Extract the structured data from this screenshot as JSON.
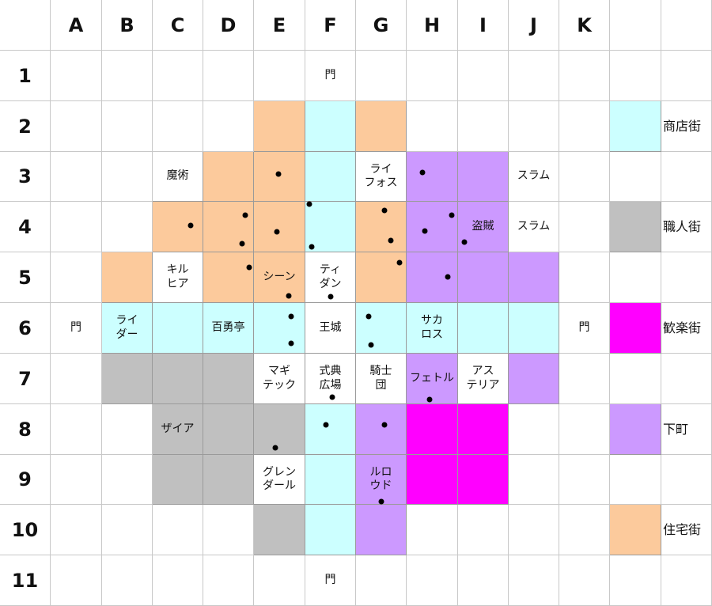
{
  "columns": [
    "A",
    "B",
    "C",
    "D",
    "E",
    "F",
    "G",
    "H",
    "I",
    "J",
    "K"
  ],
  "rows": [
    "1",
    "2",
    "3",
    "4",
    "5",
    "6",
    "7",
    "8",
    "9",
    "10",
    "11"
  ],
  "colors": {
    "shop": "#ccffff",
    "residential": "#fcca9c",
    "craft": "#c0c0c0",
    "entertainment": "#ff00ff",
    "downtown": "#cc99ff",
    "label": "#ffffff",
    "grid": "#c8c8c8"
  },
  "zones": {
    "1": {},
    "2": {
      "E": "residential",
      "F": "shop",
      "G": "residential"
    },
    "3": {
      "C": "label",
      "D": "residential",
      "E": "residential",
      "F": "shop",
      "G": "label",
      "H": "downtown",
      "I": "downtown"
    },
    "4": {
      "C": "residential",
      "D": "residential",
      "E": "residential",
      "F": "shop",
      "G": "residential",
      "H": "downtown",
      "I": "downtown"
    },
    "5": {
      "B": "residential",
      "C": "label",
      "D": "residential",
      "E": "residential",
      "F": "label",
      "G": "residential",
      "H": "downtown",
      "I": "downtown",
      "J": "downtown"
    },
    "6": {
      "B": "shop",
      "C": "shop",
      "D": "shop",
      "E": "shop",
      "F": "label",
      "G": "shop",
      "H": "shop",
      "I": "shop",
      "J": "shop"
    },
    "7": {
      "B": "craft",
      "C": "craft",
      "D": "craft",
      "E": "label",
      "F": "label",
      "G": "label",
      "H": "downtown",
      "I": "label",
      "J": "downtown"
    },
    "8": {
      "C": "craft",
      "D": "craft",
      "E": "craft",
      "F": "shop",
      "G": "downtown",
      "H": "entertainment",
      "I": "entertainment"
    },
    "9": {
      "C": "craft",
      "D": "craft",
      "E": "label",
      "F": "shop",
      "G": "downtown",
      "H": "entertainment",
      "I": "entertainment"
    },
    "10": {
      "E": "craft",
      "F": "shop",
      "G": "downtown"
    },
    "11": {}
  },
  "labels": {
    "1": {
      "F": "門"
    },
    "3": {
      "C": "魔術",
      "G": "ライ\nフォス",
      "J": "スラム"
    },
    "4": {
      "I": "盗賊",
      "J": "スラム"
    },
    "5": {
      "C": "キル\nヒア",
      "E": "シーン",
      "F": "ティ\nダン"
    },
    "6": {
      "A": "門",
      "B": "ライ\nダー",
      "D": "百勇亭",
      "F": "王城",
      "H": "サカ\nロス",
      "K": "門"
    },
    "7": {
      "E": "マギ\nテック",
      "F": "式典\n広場",
      "G": "騎士\n団",
      "H": "フェトル",
      "I": "アス\nテリア"
    },
    "8": {
      "C": "ザイア"
    },
    "9": {
      "E": "グレン\nダール",
      "G": "ルロ\nウド"
    },
    "11": {
      "F": "門"
    }
  },
  "legend": [
    {
      "row": "2",
      "zone": "shop",
      "label": "商店街"
    },
    {
      "row": "4",
      "zone": "craft",
      "label": "職人街"
    },
    {
      "row": "6",
      "zone": "entertainment",
      "label": "歓楽街"
    },
    {
      "row": "8",
      "zone": "downtown",
      "label": "下町"
    },
    {
      "row": "10",
      "zone": "residential",
      "label": "住宅街"
    }
  ],
  "markers": [
    {
      "cell": "E3",
      "fx": 0.47,
      "fy": 0.45
    },
    {
      "cell": "H3",
      "fx": 0.31,
      "fy": 0.42
    },
    {
      "cell": "C4",
      "fx": 0.75,
      "fy": 0.47
    },
    {
      "cell": "D4",
      "fx": 0.83,
      "fy": 0.27
    },
    {
      "cell": "D4",
      "fx": 0.77,
      "fy": 0.83
    },
    {
      "cell": "E4",
      "fx": 0.44,
      "fy": 0.59
    },
    {
      "cell": "F4",
      "fx": 0.08,
      "fy": 0.05
    },
    {
      "cell": "F4",
      "fx": 0.12,
      "fy": 0.89
    },
    {
      "cell": "G4",
      "fx": 0.56,
      "fy": 0.17
    },
    {
      "cell": "G4",
      "fx": 0.69,
      "fy": 0.77
    },
    {
      "cell": "H4",
      "fx": 0.36,
      "fy": 0.58
    },
    {
      "cell": "H4",
      "fx": 0.88,
      "fy": 0.27
    },
    {
      "cell": "I4",
      "fx": 0.13,
      "fy": 0.8
    },
    {
      "cell": "D5",
      "fx": 0.91,
      "fy": 0.3
    },
    {
      "cell": "E5",
      "fx": 0.67,
      "fy": 0.86
    },
    {
      "cell": "F5",
      "fx": 0.5,
      "fy": 0.88
    },
    {
      "cell": "G5",
      "fx": 0.86,
      "fy": 0.2
    },
    {
      "cell": "H5",
      "fx": 0.8,
      "fy": 0.48
    },
    {
      "cell": "E6",
      "fx": 0.72,
      "fy": 0.27
    },
    {
      "cell": "E6",
      "fx": 0.73,
      "fy": 0.8
    },
    {
      "cell": "G6",
      "fx": 0.25,
      "fy": 0.27
    },
    {
      "cell": "G6",
      "fx": 0.3,
      "fy": 0.83
    },
    {
      "cell": "F7",
      "fx": 0.53,
      "fy": 0.86
    },
    {
      "cell": "H7",
      "fx": 0.45,
      "fy": 0.91
    },
    {
      "cell": "E8",
      "fx": 0.41,
      "fy": 0.86
    },
    {
      "cell": "F8",
      "fx": 0.41,
      "fy": 0.41
    },
    {
      "cell": "G8",
      "fx": 0.56,
      "fy": 0.41
    },
    {
      "cell": "G9",
      "fx": 0.5,
      "fy": 0.94
    }
  ]
}
